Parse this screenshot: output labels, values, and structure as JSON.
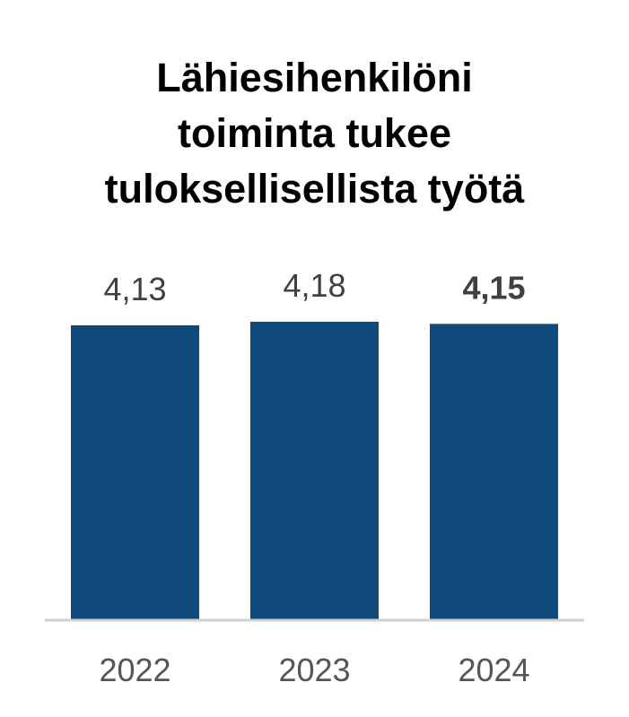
{
  "title_lines": [
    "Lähiesihenkilöni",
    "toiminta tukee",
    "tuloksellisellista työtä"
  ],
  "colors": {
    "bar": "#0f4a7b",
    "axis_line": "#d0d0d0",
    "value_text": "#404040",
    "tick_text": "#555555"
  },
  "chart_data": {
    "type": "bar",
    "title": "Lähiesihenkilöni toiminta tukee tuloksellisellista työtä",
    "categories": [
      "2022",
      "2023",
      "2024"
    ],
    "values": [
      4.13,
      4.18,
      4.15
    ],
    "value_labels": [
      "4,13",
      "4,18",
      "4,15"
    ],
    "highlighted_index": 2,
    "xlabel": "",
    "ylabel": "",
    "ylim": [
      0,
      4.18
    ],
    "grid": false,
    "legend": "none"
  }
}
